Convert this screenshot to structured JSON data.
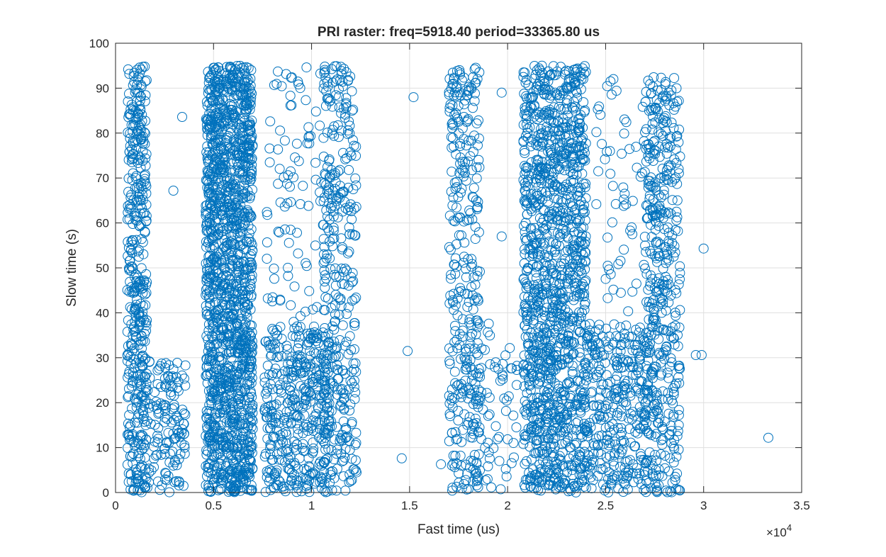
{
  "chart_data": {
    "type": "scatter",
    "title": "PRI raster: freq=5918.40 period=33365.80 us",
    "xlabel": "Fast time (us)",
    "ylabel": "Slow time (s)",
    "xlim": [
      0,
      35000
    ],
    "ylim": [
      0,
      100
    ],
    "x_exponent_base": "×10",
    "x_exponent_power": "4",
    "x_ticks": [
      0,
      5000,
      10000,
      15000,
      20000,
      25000,
      30000,
      35000
    ],
    "x_tick_labels": [
      "0",
      "0.5",
      "1",
      "1.5",
      "2",
      "2.5",
      "3",
      "3.5"
    ],
    "y_ticks": [
      0,
      10,
      20,
      30,
      40,
      50,
      60,
      70,
      80,
      90,
      100
    ],
    "y_tick_labels": [
      "0",
      "10",
      "20",
      "30",
      "40",
      "50",
      "60",
      "70",
      "80",
      "90",
      "100"
    ],
    "grid": true,
    "box": true,
    "marker": "circle",
    "marker_color": "#0072bd",
    "clusters": [
      {
        "x": [
          600,
          1600
        ],
        "y": [
          0,
          95
        ],
        "n": 420
      },
      {
        "x": [
          1500,
          2600
        ],
        "y": [
          0,
          30
        ],
        "n": 60
      },
      {
        "x": [
          2500,
          3600
        ],
        "y": [
          0,
          30
        ],
        "n": 80
      },
      {
        "x": [
          4600,
          7000
        ],
        "y": [
          0,
          95
        ],
        "n": 1500
      },
      {
        "x": [
          7600,
          9200
        ],
        "y": [
          0,
          37
        ],
        "n": 180
      },
      {
        "x": [
          9200,
          10900
        ],
        "y": [
          0,
          37
        ],
        "n": 220
      },
      {
        "x": [
          10600,
          12300
        ],
        "y": [
          0,
          95
        ],
        "n": 320
      },
      {
        "x": [
          7700,
          11300
        ],
        "y": [
          37,
          95
        ],
        "n": 110
      },
      {
        "x": [
          17000,
          18600
        ],
        "y": [
          0,
          95
        ],
        "n": 320
      },
      {
        "x": [
          18300,
          20500
        ],
        "y": [
          0,
          38
        ],
        "n": 70
      },
      {
        "x": [
          20800,
          24000
        ],
        "y": [
          0,
          95
        ],
        "n": 1250
      },
      {
        "x": [
          24000,
          27200
        ],
        "y": [
          0,
          38
        ],
        "n": 330
      },
      {
        "x": [
          24500,
          27600
        ],
        "y": [
          38,
          93
        ],
        "n": 70
      },
      {
        "x": [
          27000,
          28800
        ],
        "y": [
          0,
          93
        ],
        "n": 420
      }
    ],
    "points": [
      [
        2950,
        67.2
      ],
      [
        3400,
        83.6
      ],
      [
        15200,
        88
      ],
      [
        14900,
        31.5
      ],
      [
        14600,
        7.6
      ],
      [
        19700,
        89
      ],
      [
        19700,
        57
      ],
      [
        29600,
        30.6
      ],
      [
        29900,
        30.6
      ],
      [
        30000,
        54.3
      ],
      [
        33300,
        12.2
      ],
      [
        16600,
        6.3
      ],
      [
        21600,
        57.5
      ],
      [
        24600,
        85.3
      ],
      [
        28800,
        74.8
      ]
    ]
  }
}
